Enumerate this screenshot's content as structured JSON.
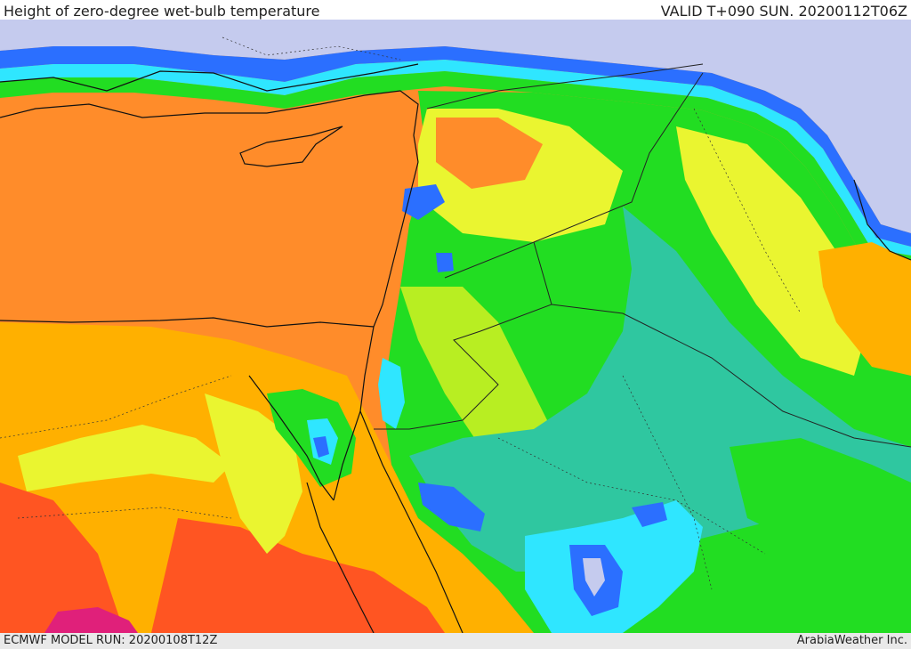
{
  "header": {
    "title": "Height of zero-degree wet-bulb temperature",
    "valid": "VALID T+090 SUN. 20200112T06Z"
  },
  "footer": {
    "model_run": "ECMWF MODEL RUN: 20200108T12Z",
    "credit": "ArabiaWeather Inc."
  },
  "colors": {
    "sea_cold": "#c5cbee",
    "blue": "#2b6fff",
    "cyan": "#2fe6ff",
    "teal": "#2fc7a0",
    "green": "#22dd22",
    "yellow_green": "#b8ee22",
    "yellow": "#eaf530",
    "amber": "#ffb000",
    "orange": "#ff8c2a",
    "red_orange": "#ff5522",
    "magenta": "#e0207a"
  }
}
